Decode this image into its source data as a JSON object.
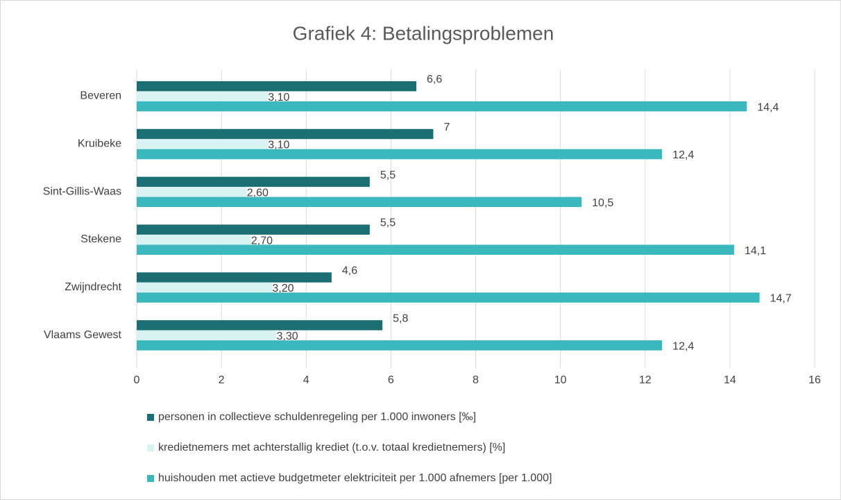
{
  "chart_data": {
    "type": "hbar",
    "title": "Grafiek 4: Betalingsproblemen",
    "categories": [
      "Beveren",
      "Kruibeke",
      "Sint-Gillis-Waas",
      "Stekene",
      "Zwijndrecht",
      "Vlaams Gewest"
    ],
    "series": [
      {
        "name": "personen in collectieve schuldenregeling per 1.000 inwoners [‰]",
        "color": "#1b6e72",
        "values": [
          6.6,
          7,
          5.5,
          5.5,
          4.6,
          5.8
        ],
        "value_labels": [
          "6,6",
          "7",
          "5,5",
          "5,5",
          "4,6",
          "5,8"
        ]
      },
      {
        "name": "kredietnemers met achterstallig krediet (t.o.v. totaal kredietnemers) [%]",
        "color": "#d9f2f2",
        "values": [
          3.1,
          3.1,
          2.6,
          2.7,
          3.2,
          3.3
        ],
        "value_labels": [
          "3,10",
          "3,10",
          "2,60",
          "2,70",
          "3,20",
          "3,30"
        ]
      },
      {
        "name": "huishouden met actieve budgetmeter elektriciteit per 1.000 afnemers [per 1.000]",
        "color": "#3bb8bd",
        "values": [
          14.4,
          12.4,
          10.5,
          14.1,
          14.7,
          12.4
        ],
        "value_labels": [
          "14,4",
          "12,4",
          "10,5",
          "14,1",
          "14,7",
          "12,4"
        ]
      }
    ],
    "xlim": [
      0,
      16
    ],
    "xticks": [
      0,
      2,
      4,
      6,
      8,
      10,
      12,
      14,
      16
    ],
    "grid": true
  }
}
